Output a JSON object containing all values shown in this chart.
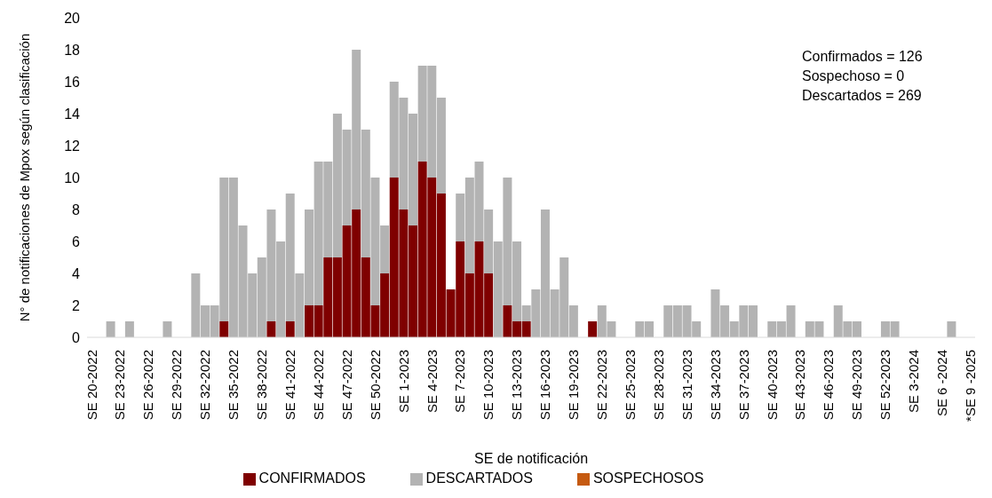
{
  "chart_data": {
    "type": "bar",
    "stacked": true,
    "xlabel": "SE de notificación",
    "ylabel": "N° de notificaciones de Mpox según clasificación",
    "categories": [
      "SE 20-2022",
      null,
      null,
      "SE 23-2022",
      null,
      null,
      "SE 26-2022",
      null,
      null,
      "SE 29-2022",
      null,
      null,
      "SE 32-2022",
      null,
      null,
      "SE 35-2022",
      null,
      null,
      "SE 38-2022",
      null,
      null,
      "SE 41-2022",
      null,
      null,
      "SE 44-2022",
      null,
      null,
      "SE 47-2022",
      null,
      null,
      "SE 50-2022",
      null,
      null,
      "SE 1-2023",
      null,
      null,
      "SE 4-2023",
      null,
      null,
      "SE 7-2023",
      null,
      null,
      "SE 10-2023",
      null,
      null,
      "SE 13-2023",
      null,
      null,
      "SE 16-2023",
      null,
      null,
      "SE 19-2023",
      null,
      null,
      "SE 22-2023",
      null,
      null,
      "SE 25-2023",
      null,
      null,
      "SE 28-2023",
      null,
      null,
      "SE 31-2023",
      null,
      null,
      "SE 34-2023",
      null,
      null,
      "SE 37-2023",
      null,
      null,
      "SE 40-2023",
      null,
      null,
      "SE 43-2023",
      null,
      null,
      "SE 46-2023",
      null,
      null,
      "SE 49-2023",
      null,
      null,
      "SE 52-2023",
      null,
      null,
      "SE 3-2024",
      null,
      null,
      "SE 6 -2024",
      null,
      null,
      "*SE 9 -2025"
    ],
    "series": [
      {
        "name": "CONFIRMADOS",
        "color": "#7f0000",
        "values": [
          0,
          0,
          0,
          0,
          0,
          0,
          0,
          0,
          0,
          0,
          0,
          0,
          0,
          0,
          1,
          0,
          0,
          0,
          0,
          1,
          0,
          1,
          0,
          2,
          2,
          5,
          5,
          7,
          8,
          5,
          2,
          4,
          10,
          8,
          7,
          11,
          10,
          9,
          3,
          6,
          4,
          6,
          4,
          0,
          2,
          1,
          1,
          0,
          0,
          0,
          0,
          0,
          0,
          1,
          0,
          0,
          0,
          0,
          0,
          0,
          0,
          0,
          0,
          0,
          0,
          0,
          0,
          0,
          0,
          0,
          0,
          0,
          0,
          0,
          0,
          0,
          0,
          0,
          0,
          0,
          0,
          0,
          0,
          0,
          0,
          0,
          0,
          0,
          0,
          0,
          0,
          0,
          0,
          0
        ]
      },
      {
        "name": "DESCARTADOS",
        "color": "#b3b3b3",
        "values": [
          0,
          0,
          1,
          0,
          1,
          0,
          0,
          0,
          1,
          0,
          0,
          4,
          2,
          2,
          9,
          10,
          7,
          4,
          5,
          7,
          6,
          8,
          4,
          6,
          9,
          6,
          9,
          6,
          10,
          8,
          8,
          3,
          6,
          7,
          7,
          6,
          7,
          6,
          0,
          3,
          6,
          5,
          4,
          6,
          8,
          5,
          1,
          3,
          8,
          3,
          5,
          2,
          0,
          0,
          2,
          1,
          0,
          0,
          1,
          1,
          0,
          2,
          2,
          2,
          1,
          0,
          3,
          2,
          1,
          2,
          2,
          0,
          1,
          1,
          2,
          0,
          1,
          1,
          0,
          2,
          1,
          1,
          0,
          0,
          1,
          1,
          0,
          0,
          0,
          0,
          0,
          1,
          0,
          0
        ]
      },
      {
        "name": "SOSPECHOSOS",
        "color": "#c55a11",
        "values": [
          0,
          0,
          0,
          0,
          0,
          0,
          0,
          0,
          0,
          0,
          0,
          0,
          0,
          0,
          0,
          0,
          0,
          0,
          0,
          0,
          0,
          0,
          0,
          0,
          0,
          0,
          0,
          0,
          0,
          0,
          0,
          0,
          0,
          0,
          0,
          0,
          0,
          0,
          0,
          0,
          0,
          0,
          0,
          0,
          0,
          0,
          0,
          0,
          0,
          0,
          0,
          0,
          0,
          0,
          0,
          0,
          0,
          0,
          0,
          0,
          0,
          0,
          0,
          0,
          0,
          0,
          0,
          0,
          0,
          0,
          0,
          0,
          0,
          0,
          0,
          0,
          0,
          0,
          0,
          0,
          0,
          0,
          0,
          0,
          0,
          0,
          0,
          0,
          0,
          0,
          0,
          0,
          0,
          0
        ]
      }
    ],
    "ylim": [
      0,
      20
    ],
    "yticks": [
      0,
      2,
      4,
      6,
      8,
      10,
      12,
      14,
      16,
      18,
      20
    ],
    "grid": false,
    "legend": "bottom",
    "annotations": [
      "Confirmados = 126",
      "Sospechoso = 0",
      "Descartados = 269"
    ]
  }
}
